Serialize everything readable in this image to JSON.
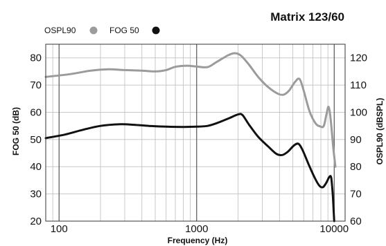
{
  "chart_data": {
    "type": "line",
    "title": "Matrix 123/60",
    "xlabel": "Frequency (Hz)",
    "ylabel_left": "FOG 50 (dB)",
    "ylabel_right": "OSPL90 (dBSPL)",
    "x_scale": "log",
    "xlim": [
      80,
      12000
    ],
    "ylim_left": [
      20,
      85
    ],
    "ylim_right": [
      60,
      125
    ],
    "x_ticks": [
      100,
      1000,
      10000
    ],
    "x_tick_labels": [
      "100",
      "1000",
      "10000"
    ],
    "y_ticks_left": [
      20,
      30,
      40,
      50,
      60,
      70,
      80
    ],
    "y_tick_labels_left": [
      "20",
      "30",
      "40",
      "50",
      "60",
      "70",
      "80"
    ],
    "y_ticks_right": [
      60,
      70,
      80,
      90,
      100,
      110,
      120
    ],
    "y_tick_labels_right": [
      "60",
      "70",
      "80",
      "90",
      "100",
      "110",
      "120"
    ],
    "grid": true,
    "legend_position": "top-left",
    "series": [
      {
        "name": "OSPL90",
        "axis": "right",
        "color": "#9b9b9b",
        "points": [
          [
            80,
            113
          ],
          [
            120,
            114
          ],
          [
            170,
            115.3
          ],
          [
            230,
            115.8
          ],
          [
            300,
            115.5
          ],
          [
            400,
            115.3
          ],
          [
            500,
            115.0
          ],
          [
            600,
            115.5
          ],
          [
            700,
            116.7
          ],
          [
            850,
            117.1
          ],
          [
            1000,
            116.8
          ],
          [
            1200,
            116.6
          ],
          [
            1400,
            118.5
          ],
          [
            1700,
            121.0
          ],
          [
            1900,
            121.7
          ],
          [
            2100,
            120.8
          ],
          [
            2400,
            117.5
          ],
          [
            2800,
            113.0
          ],
          [
            3300,
            109.3
          ],
          [
            3900,
            106.8
          ],
          [
            4300,
            106.5
          ],
          [
            4700,
            108.0
          ],
          [
            5200,
            111.2
          ],
          [
            5600,
            112.2
          ],
          [
            6000,
            108.0
          ],
          [
            6600,
            100.5
          ],
          [
            7300,
            96.0
          ],
          [
            7900,
            94.8
          ],
          [
            8400,
            95.0
          ],
          [
            8800,
            99.5
          ],
          [
            9100,
            102.0
          ],
          [
            9400,
            98.0
          ],
          [
            9800,
            88.0
          ],
          [
            10200,
            80.0
          ]
        ]
      },
      {
        "name": "FOG 50",
        "axis": "left",
        "color": "#111111",
        "points": [
          [
            80,
            50.5
          ],
          [
            110,
            51.8
          ],
          [
            150,
            53.6
          ],
          [
            200,
            55.0
          ],
          [
            280,
            55.6
          ],
          [
            350,
            55.4
          ],
          [
            450,
            55.0
          ],
          [
            600,
            54.7
          ],
          [
            800,
            54.6
          ],
          [
            1000,
            54.7
          ],
          [
            1200,
            55.0
          ],
          [
            1400,
            56.0
          ],
          [
            1700,
            57.7
          ],
          [
            2000,
            59.2
          ],
          [
            2150,
            59.0
          ],
          [
            2400,
            55.5
          ],
          [
            2800,
            51.0
          ],
          [
            3300,
            47.5
          ],
          [
            3800,
            44.7
          ],
          [
            4200,
            44.3
          ],
          [
            4600,
            45.5
          ],
          [
            5100,
            47.8
          ],
          [
            5500,
            48.4
          ],
          [
            5900,
            46.0
          ],
          [
            6500,
            41.0
          ],
          [
            7200,
            36.0
          ],
          [
            7800,
            33.0
          ],
          [
            8300,
            32.5
          ],
          [
            8800,
            34.3
          ],
          [
            9200,
            36.2
          ],
          [
            9500,
            36.0
          ],
          [
            9750,
            30.0
          ],
          [
            9900,
            24.0
          ],
          [
            10000,
            20.0
          ]
        ]
      }
    ]
  }
}
